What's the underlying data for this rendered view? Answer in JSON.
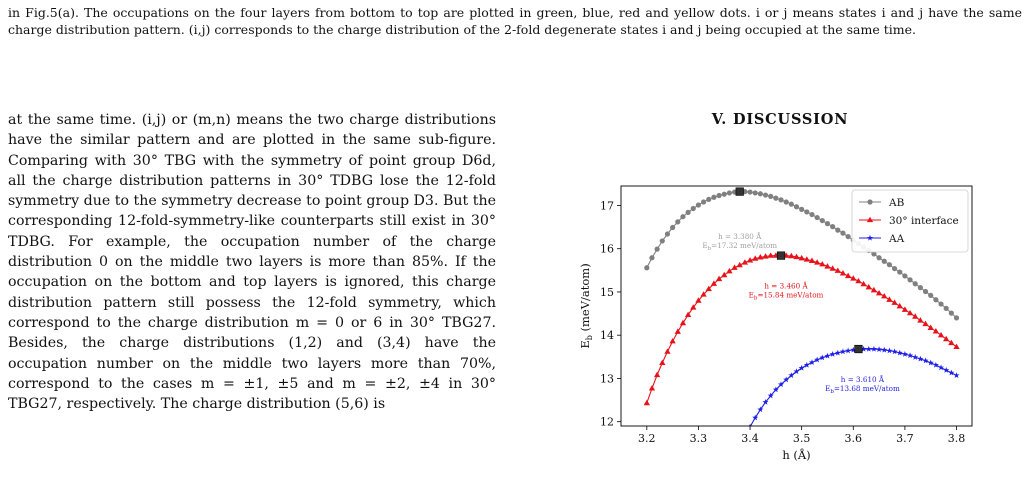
{
  "caption": {
    "text": "in Fig.5(a). The occupations on the four layers from bottom to top are plotted in green, blue, red and yellow dots. i or j means states i and j have the same charge distribution pattern. (i,j) corresponds to the charge distribution of the 2-fold degenerate states i and j being occupied at the same time."
  },
  "body": {
    "paragraph": "at the same time. (i,j) or (m,n) means the two charge distributions have the similar pattern and are plotted in the same sub-figure. Comparing with 30° TBG with the symmetry of point group D6d, all the charge distribution patterns in 30° TDBG lose the 12-fold symmetry due to the symmetry decrease to point group D3. But the corresponding 12-fold-symmetry-like counterparts still exist in 30° TDBG. For example, the occupation number of the charge distribution 0 on the middle two layers is more than 85%. If the occupation on the bottom and top layers is ignored, this charge distribution pattern still possess the 12-fold symmetry, which correspond to the charge distribution m = 0 or 6 in 30° TBG27. Besides, the charge distributions (1,2) and (3,4) have the occupation number on the middle two layers more than 70%, correspond to the cases m = ±1, ±5 and m = ±2, ±4 in 30° TBG27, respectively. The charge distribution (5,6) is"
  },
  "section": {
    "heading": "V. DISCUSSION"
  },
  "chart_data": {
    "type": "line",
    "xlabel": "h (Å)",
    "ylabel": "Eb (meV/atom)",
    "xlim": [
      3.15,
      3.83
    ],
    "ylim": [
      11.9,
      17.45
    ],
    "x_ticks": [
      "3.2",
      "3.3",
      "3.4",
      "3.5",
      "3.6",
      "3.7",
      "3.8"
    ],
    "y_ticks": [
      "12",
      "13",
      "14",
      "15",
      "16",
      "17"
    ],
    "legend_position": "top-right",
    "series": [
      {
        "name": "AB",
        "color": "#808080",
        "marker": "circle",
        "x_start": 3.2,
        "x_end": 3.8,
        "x_step": 0.01,
        "peak": {
          "x": 3.38,
          "y": 17.32
        },
        "values": [
          15.56,
          15.79,
          15.99,
          16.18,
          16.34,
          16.49,
          16.62,
          16.74,
          16.84,
          16.93,
          17.01,
          17.08,
          17.14,
          17.19,
          17.23,
          17.26,
          17.29,
          17.31,
          17.32,
          17.32,
          17.31,
          17.29,
          17.27,
          17.24,
          17.21,
          17.17,
          17.13,
          17.08,
          17.03,
          16.97,
          16.91,
          16.85,
          16.79,
          16.72,
          16.65,
          16.58,
          16.51,
          16.43,
          16.36,
          16.28,
          16.2,
          16.12,
          16.04,
          15.96,
          15.88,
          15.79,
          15.71,
          15.63,
          15.54,
          15.46,
          15.37,
          15.28,
          15.19,
          15.1,
          15.01,
          14.92,
          14.82,
          14.72,
          14.62,
          14.51,
          14.4
        ]
      },
      {
        "name": "30° interface",
        "color": "#e8121a",
        "marker": "triangle",
        "x_start": 3.2,
        "x_end": 3.8,
        "x_step": 0.01,
        "peak": {
          "x": 3.46,
          "y": 15.84
        },
        "values": [
          12.43,
          12.77,
          13.08,
          13.36,
          13.62,
          13.86,
          14.08,
          14.28,
          14.47,
          14.64,
          14.8,
          14.94,
          15.07,
          15.19,
          15.3,
          15.39,
          15.48,
          15.56,
          15.62,
          15.68,
          15.73,
          15.77,
          15.8,
          15.82,
          15.84,
          15.84,
          15.84,
          15.84,
          15.83,
          15.81,
          15.78,
          15.75,
          15.72,
          15.68,
          15.64,
          15.59,
          15.54,
          15.49,
          15.43,
          15.37,
          15.31,
          15.25,
          15.18,
          15.11,
          15.04,
          14.97,
          14.9,
          14.82,
          14.75,
          14.67,
          14.59,
          14.51,
          14.43,
          14.34,
          14.26,
          14.17,
          14.09,
          14.0,
          13.91,
          13.82,
          13.73
        ]
      },
      {
        "name": "AA",
        "color": "#1f1fe8",
        "marker": "star",
        "x_start": 3.2,
        "x_end": 3.8,
        "x_step": 0.01,
        "peak": {
          "x": 3.61,
          "y": 13.68
        },
        "values": [
          null,
          null,
          null,
          null,
          null,
          null,
          null,
          null,
          null,
          null,
          null,
          null,
          null,
          null,
          null,
          null,
          null,
          null,
          null,
          null,
          11.88,
          12.09,
          12.28,
          12.45,
          12.6,
          12.74,
          12.86,
          12.97,
          13.07,
          13.16,
          13.24,
          13.31,
          13.37,
          13.43,
          13.48,
          13.52,
          13.56,
          13.59,
          13.62,
          13.64,
          13.66,
          13.67,
          13.68,
          13.68,
          13.68,
          13.67,
          13.66,
          13.64,
          13.62,
          13.59,
          13.56,
          13.53,
          13.49,
          13.45,
          13.41,
          13.36,
          13.31,
          13.25,
          13.19,
          13.13,
          13.07
        ]
      }
    ],
    "annotations": [
      {
        "series": "AB",
        "h_text": "h = 3.380 Å",
        "e_text": "Eb=17.32 meV/atom",
        "color": "#a0a0a0"
      },
      {
        "series": "30° interface",
        "h_text": "h = 3.460 Å",
        "e_text": "Eb=15.84 meV/atom",
        "color": "#e8121a"
      },
      {
        "series": "AA",
        "h_text": "h = 3.610 Å",
        "e_text": "Eb=13.68 meV/atom",
        "color": "#1f1fe8"
      }
    ]
  }
}
